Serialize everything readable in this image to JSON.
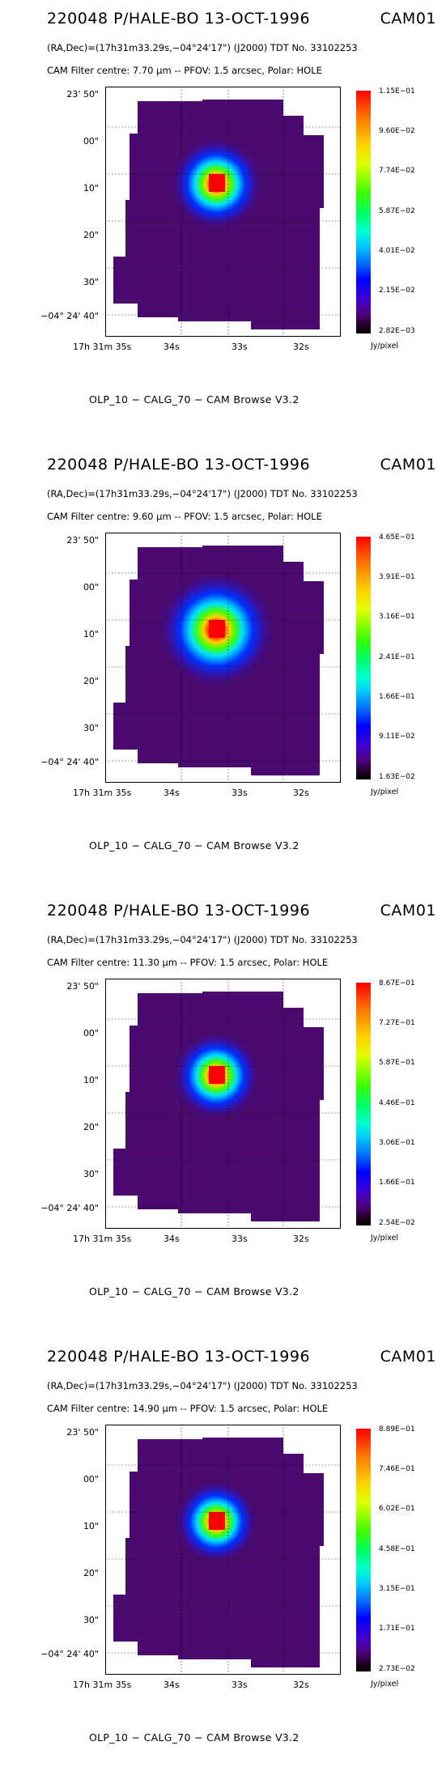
{
  "common": {
    "title": "220048 P/HALE-BO 13-OCT-1996",
    "cam": "CAM01",
    "coords": "(RA,Dec)=(17h31m33.29s,−04°24'17\") (J2000) TDT No. 33102253",
    "unit": "Jy/pixel",
    "footer": "OLP_10   − CALG_70   − CAM Browse V3.2",
    "yticks": [
      "23' 50\"",
      "00\"",
      "10\"",
      "20\"",
      "30\"",
      "−04° 24' 40\""
    ],
    "xticks": [
      "17h 31m 35s",
      "34s",
      "33s",
      "32s"
    ]
  },
  "panels": [
    {
      "filter": "CAM  Filter  centre:  7.70 μm  --   PFOV:  1.5 arcsec, Polar: HOLE",
      "cbar_ticks": [
        "1.15E−01",
        "9.60E−02",
        "7.74E−02",
        "5.87E−02",
        "4.01E−02",
        "2.15E−02",
        "2.82E−03"
      ]
    },
    {
      "filter": "CAM  Filter  centre:  9.60 μm  --   PFOV:  1.5 arcsec, Polar: HOLE",
      "cbar_ticks": [
        "4.65E−01",
        "3.91E−01",
        "3.16E−01",
        "2.41E−01",
        "1.66E−01",
        "9.11E−02",
        "1.63E−02"
      ]
    },
    {
      "filter": "CAM  Filter  centre: 11.30 μm  --   PFOV:  1.5 arcsec, Polar: HOLE",
      "cbar_ticks": [
        "8.67E−01",
        "7.27E−01",
        "5.87E−01",
        "4.46E−01",
        "3.06E−01",
        "1.66E−01",
        "2.54E−02"
      ]
    },
    {
      "filter": "CAM  Filter  centre: 14.90 μm  --   PFOV:  1.5 arcsec, Polar: HOLE",
      "cbar_ticks": [
        "8.89E−01",
        "7.46E−01",
        "6.02E−01",
        "4.58E−01",
        "3.15E−01",
        "1.71E−01",
        "2.73E−02"
      ]
    }
  ],
  "colors": {
    "peak": "#ff0000",
    "background": "#4a0a6e",
    "frame": "#000000"
  }
}
